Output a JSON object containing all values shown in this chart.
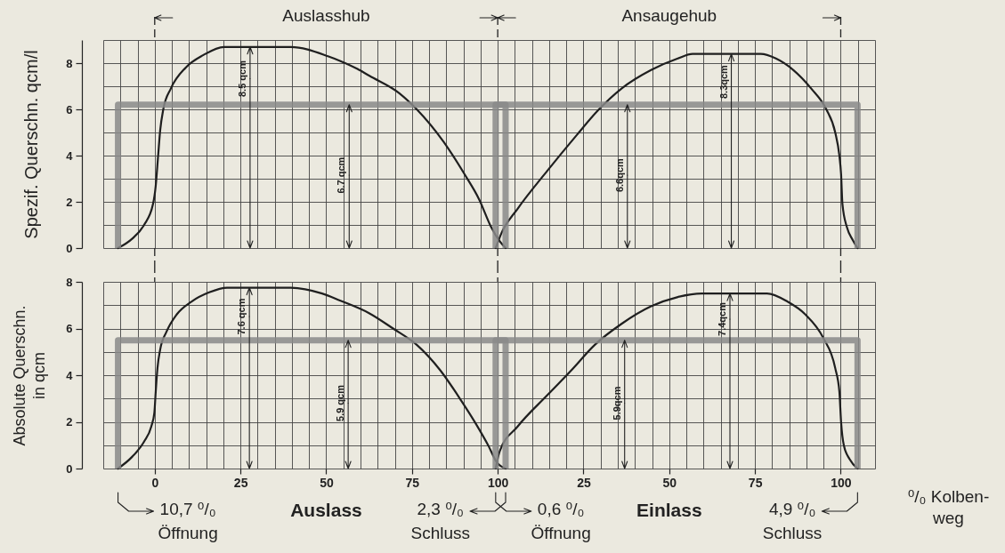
{
  "chart_data": [
    {
      "type": "line",
      "ylabel": "Spezif. Querschn. qcm/l",
      "grid": true,
      "tick_labels": "y",
      "xlim": [
        -15,
        210
      ],
      "xticks": [
        {
          "value": -15,
          "label": null
        },
        {
          "value": -10,
          "label": null
        },
        {
          "value": -5,
          "label": null
        },
        0,
        {
          "value": 5,
          "label": null
        },
        {
          "value": 10,
          "label": null
        },
        {
          "value": 15,
          "label": null
        },
        {
          "value": 20,
          "label": null
        },
        25,
        {
          "value": 30,
          "label": null
        },
        {
          "value": 35,
          "label": null
        },
        {
          "value": 40,
          "label": null
        },
        {
          "value": 45,
          "label": null
        },
        50,
        {
          "value": 55,
          "label": null
        },
        {
          "value": 60,
          "label": null
        },
        {
          "value": 65,
          "label": null
        },
        {
          "value": 70,
          "label": null
        },
        75,
        {
          "value": 80,
          "label": null
        },
        {
          "value": 85,
          "label": null
        },
        {
          "value": 90,
          "label": null
        },
        {
          "value": 95,
          "label": null
        },
        100,
        {
          "value": 105,
          "label": null
        },
        {
          "value": 110,
          "label": null
        },
        {
          "value": 115,
          "label": null
        },
        {
          "value": 120,
          "label": null
        },
        {
          "value": 125,
          "label": null
        },
        {
          "value": 130,
          "label": null
        },
        {
          "value": 135,
          "label": null
        },
        {
          "value": 140,
          "label": null
        },
        {
          "value": 145,
          "label": null
        },
        {
          "value": 150,
          "label": null
        },
        {
          "value": 155,
          "label": null
        },
        {
          "value": 160,
          "label": null
        },
        {
          "value": 165,
          "label": null
        },
        {
          "value": 170,
          "label": null
        },
        {
          "value": 175,
          "label": null
        },
        {
          "value": 180,
          "label": null
        },
        {
          "value": 185,
          "label": null
        },
        {
          "value": 190,
          "label": null
        },
        {
          "value": 195,
          "label": null
        },
        {
          "value": 200,
          "label": null
        },
        {
          "value": 205,
          "label": null
        },
        {
          "value": 210,
          "label": null
        }
      ],
      "ylim": [
        0,
        9
      ],
      "yticks": [
        0,
        {
          "value": 1,
          "label": null
        },
        2,
        {
          "value": 3,
          "label": null
        },
        4,
        {
          "value": 5,
          "label": null
        },
        6,
        {
          "value": 7,
          "label": null
        },
        8,
        {
          "value": 9,
          "label": null
        }
      ],
      "series": [
        {
          "color": "#1f1f1f",
          "x": [
            -10.7,
            -6.6,
            -3.1,
            -0.5,
            0.3,
            1.0,
            1.6,
            2.5,
            4.7,
            9.0,
            14.2,
            20.2,
            39.7,
            50.5,
            54.0,
            59.1,
            62.6,
            71.3,
            76.4,
            84.2,
            90.3,
            94.6,
            98.1,
            100.3,
            102.3
          ],
          "values": [
            0,
            0.4,
            1.0,
            1.9,
            2.7,
            4.0,
            5.1,
            6.0,
            6.9,
            7.8,
            8.35,
            8.7,
            8.7,
            8.3,
            8.1,
            7.75,
            7.45,
            6.7,
            6.0,
            4.6,
            3.2,
            2.1,
            0.9,
            0.35,
            0
          ]
        },
        {
          "color": "#1f1f1f",
          "x": [
            99.4,
            101.1,
            105.8,
            114.5,
            123.1,
            129.2,
            136.1,
            144.7,
            152.5,
            156.8,
            176.7,
            181.1,
            186.2,
            191.4,
            195.8,
            198.4,
            199.6,
            200.1,
            200.5,
            201.8,
            203.5,
            204.9
          ],
          "values": [
            0,
            0.65,
            1.7,
            3.35,
            4.9,
            5.95,
            6.9,
            7.7,
            8.2,
            8.4,
            8.4,
            8.2,
            7.7,
            6.9,
            6.0,
            5.0,
            4.0,
            3.2,
            1.9,
            0.9,
            0.35,
            0
          ]
        },
        {
          "color": "#8a8a8a",
          "x": [
            -10.7,
            -10.7,
            102.3,
            102.3
          ],
          "values": [
            0,
            6.2,
            6.2,
            0
          ]
        },
        {
          "color": "#8a8a8a",
          "x": [
            99.4,
            99.4,
            204.9,
            204.9
          ],
          "values": [
            0,
            6.2,
            6.2,
            0
          ]
        }
      ],
      "annotations": [
        "Auslasshub",
        "Ansaugehub",
        {
          "text": "8.5 qcm",
          "x": 27.8,
          "y": 8.7
        },
        {
          "text": "6.7 qcm",
          "x": 56.7,
          "y": 6.2
        },
        {
          "text": "6.6qcm",
          "x": 137.8,
          "y": 6.2
        },
        {
          "text": "8.3qcm",
          "x": 168.1,
          "y": 8.4
        }
      ]
    },
    {
      "type": "line",
      "ylabel": "Absolute Querschn.\nin qcm",
      "xlabel": "⁰/₀ Kolben-\nweg",
      "grid": true,
      "xlim": [
        -15,
        210
      ],
      "xticks": [
        {
          "value": -15,
          "label": null
        },
        {
          "value": -10,
          "label": null
        },
        {
          "value": -5,
          "label": null
        },
        0,
        {
          "value": 5,
          "label": null
        },
        {
          "value": 10,
          "label": null
        },
        {
          "value": 15,
          "label": null
        },
        {
          "value": 20,
          "label": null
        },
        25,
        {
          "value": 30,
          "label": null
        },
        {
          "value": 35,
          "label": null
        },
        {
          "value": 40,
          "label": null
        },
        {
          "value": 45,
          "label": null
        },
        50,
        {
          "value": 55,
          "label": null
        },
        {
          "value": 60,
          "label": null
        },
        {
          "value": 65,
          "label": null
        },
        {
          "value": 70,
          "label": null
        },
        75,
        {
          "value": 80,
          "label": null
        },
        {
          "value": 85,
          "label": null
        },
        {
          "value": 90,
          "label": null
        },
        {
          "value": 95,
          "label": null
        },
        100,
        {
          "value": 105,
          "label": null
        },
        {
          "value": 110,
          "label": null
        },
        {
          "value": 115,
          "label": null
        },
        {
          "value": 120,
          "label": null
        },
        {
          "value": 125,
          "label": null
        },
        {
          "value": 130,
          "label": null
        },
        {
          "value": 135,
          "label": null
        },
        {
          "value": 140,
          "label": null
        },
        {
          "value": 145,
          "label": null
        },
        {
          "value": 150,
          "label": null
        },
        {
          "value": 155,
          "label": null
        },
        {
          "value": 160,
          "label": null
        },
        {
          "value": 165,
          "label": null
        },
        {
          "value": 170,
          "label": null
        },
        {
          "value": 175,
          "label": null
        },
        {
          "value": 180,
          "label": null
        },
        {
          "value": 185,
          "label": null
        },
        {
          "value": 190,
          "label": null
        },
        {
          "value": 195,
          "label": null
        },
        {
          "value": 200,
          "label": null
        },
        {
          "value": 205,
          "label": null
        },
        {
          "value": 210,
          "label": null
        }
      ],
      "x2lim": [
        -115,
        110
      ],
      "x2ticks": [
        25,
        50,
        75,
        100
      ],
      "ylim": [
        0,
        8
      ],
      "yticks": [
        0,
        {
          "value": 1,
          "label": null
        },
        2,
        {
          "value": 3,
          "label": null
        },
        4,
        {
          "value": 5,
          "label": null
        },
        6,
        {
          "value": 7,
          "label": null
        },
        8
      ],
      "series": [
        {
          "color": "#1f1f1f",
          "x": [
            -10.7,
            -6.6,
            -3.1,
            -1.0,
            -0.1,
            0.3,
            0.8,
            1.6,
            3.4,
            6.4,
            10.7,
            15.9,
            21.1,
            39.7,
            48.8,
            54.0,
            62.6,
            69.5,
            76.4,
            83.3,
            89.4,
            93.7,
            97.2,
            99.8,
            102.3
          ],
          "values": [
            0,
            0.5,
            1.15,
            1.8,
            2.4,
            3.3,
            4.3,
            5.1,
            5.85,
            6.6,
            7.15,
            7.55,
            7.75,
            7.75,
            7.5,
            7.2,
            6.65,
            6.0,
            5.3,
            4.2,
            2.9,
            1.9,
            1.0,
            0.25,
            0
          ]
        },
        {
          "color": "#1f1f1f",
          "x": [
            99.4,
            100.6,
            105.8,
            114.5,
            121.4,
            128.3,
            136.1,
            144.7,
            152.5,
            159.5,
            178.5,
            184.5,
            189.7,
            194.9,
            198.4,
            199.6,
            200.1,
            200.9,
            202.6,
            204.9
          ],
          "values": [
            0,
            0.75,
            1.8,
            3.15,
            4.2,
            5.3,
            6.2,
            6.95,
            7.35,
            7.5,
            7.5,
            7.15,
            6.6,
            5.6,
            4.3,
            3.3,
            2.0,
            1.0,
            0.4,
            0
          ]
        },
        {
          "color": "#8a8a8a",
          "x": [
            -10.7,
            -10.7,
            102.3,
            102.3
          ],
          "values": [
            0,
            5.5,
            5.5,
            0
          ]
        },
        {
          "color": "#8a8a8a",
          "x": [
            99.4,
            99.4,
            204.9,
            204.9
          ],
          "values": [
            0,
            5.5,
            5.5,
            0
          ]
        }
      ],
      "annotations": [
        "Auslass",
        "Einlass",
        {
          "text": "10,7 ⁰/₀\nÖffnung",
          "x": -10.7,
          "y": 0
        },
        {
          "text": "2,3 ⁰/₀\nSchluss",
          "x": 102.3,
          "y": 0
        },
        {
          "text": "0,6 ⁰/₀\nÖffnung",
          "x": 99.4,
          "y": 0
        },
        {
          "text": "4,9 ⁰/₀\nSchluss",
          "x": 204.9,
          "y": 0
        },
        {
          "text": "7.6 qcm",
          "x": 27.6,
          "y": 7.75
        },
        {
          "text": "5.9 qcm",
          "x": 56.4,
          "y": 5.5
        },
        {
          "text": "5.9qcm",
          "x": 137,
          "y": 5.5
        },
        {
          "text": "7.4qcm",
          "x": 167.7,
          "y": 7.5
        }
      ]
    }
  ]
}
